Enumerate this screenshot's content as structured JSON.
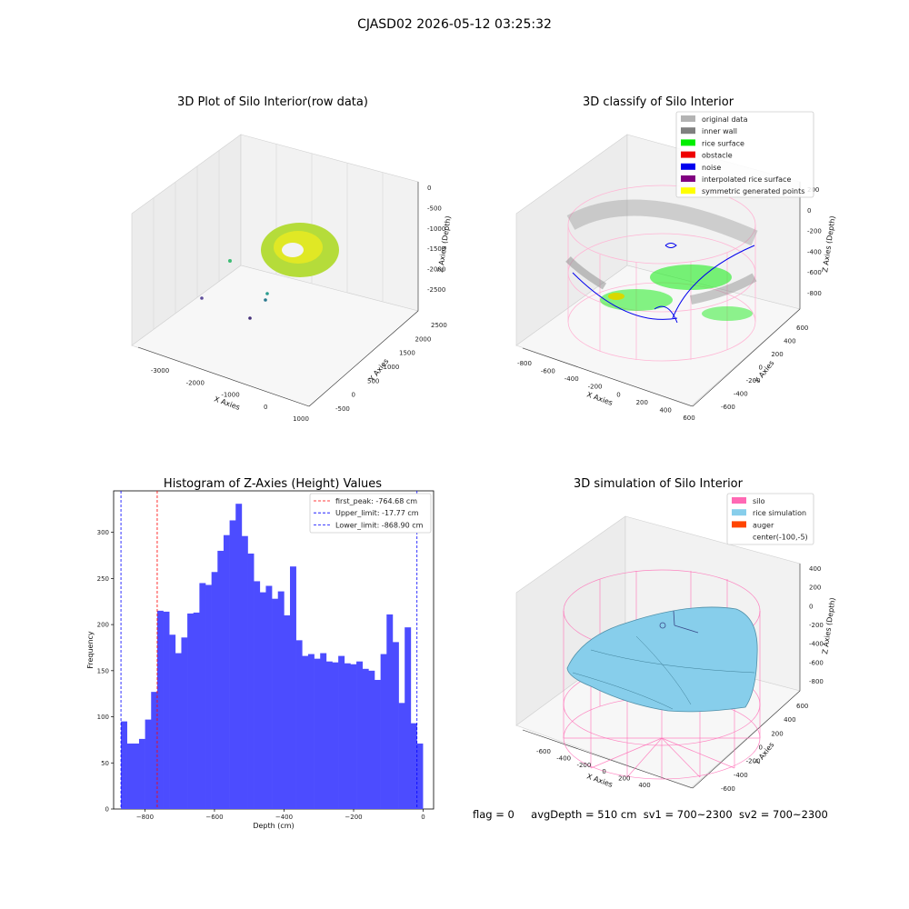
{
  "figure_title": "CJASD02 2026-05-12 03:25:32",
  "colors": {
    "hist_bar": "#4c4cff",
    "first_peak": "#ff0000",
    "limits": "#0000ff",
    "rice": "#88ccdd",
    "silo": "#ff69b4",
    "auger": "#ff4500",
    "noise": "#0000ff",
    "surface": "#00ff00",
    "wall": "#888888"
  },
  "panels": {
    "raw": {
      "title": "3D Plot of Silo Interior(row data)",
      "xlabel": "X Axies",
      "ylabel": "Y Axies",
      "zlabel": "Z Axies (Depth)",
      "xticks": [
        "-3000",
        "-2000",
        "-1000",
        "0",
        "1000"
      ],
      "yticks": [
        "-500",
        "0",
        "500",
        "1000",
        "1500",
        "2000",
        "2500"
      ],
      "zticks": [
        "0",
        "-500",
        "-1000",
        "-1500",
        "-2000",
        "-2500"
      ]
    },
    "classify": {
      "title": "3D classify of Silo Interior",
      "xlabel": "X Axies",
      "ylabel": "Y Axies",
      "zlabel": "Z Axies (Depth)",
      "xticks": [
        "-800",
        "-600",
        "-400",
        "-200",
        "0",
        "200",
        "400",
        "600"
      ],
      "yticks": [
        "-600",
        "-400",
        "-200",
        "0",
        "200",
        "400",
        "600"
      ],
      "zticks": [
        "200",
        "0",
        "-200",
        "-400",
        "-600",
        "-800"
      ],
      "legend": [
        {
          "label": "original data",
          "color": "#b3b3b3"
        },
        {
          "label": "inner wall",
          "color": "#808080"
        },
        {
          "label": "rice surface",
          "color": "#00ee00"
        },
        {
          "label": "obstacle",
          "color": "#ee0000"
        },
        {
          "label": "noise",
          "color": "#0000ee"
        },
        {
          "label": "interpolated rice surface",
          "color": "#800080"
        },
        {
          "label": "symmetric generated points",
          "color": "#ffff00"
        }
      ]
    },
    "simulation": {
      "title": "3D simulation of Silo Interior",
      "xlabel": "X Axies",
      "ylabel": "Y Axies",
      "zlabel": "Z Axies (Depth)",
      "xticks": [
        "-600",
        "-400",
        "-200",
        "0",
        "200",
        "400"
      ],
      "yticks": [
        "-600",
        "-400",
        "-200",
        "0",
        "200",
        "400",
        "600"
      ],
      "zticks": [
        "400",
        "200",
        "0",
        "-200",
        "-400",
        "-600",
        "-800"
      ],
      "legend": [
        {
          "label": "silo",
          "color": "#ff69b4"
        },
        {
          "label": "rice simulation",
          "color": "#87ceeb"
        },
        {
          "label": "auger",
          "color": "#ff4500"
        },
        {
          "label": "center(-100,-5)",
          "color": null
        }
      ]
    }
  },
  "chart_data": {
    "type": "bar",
    "title": "Histogram of Z-Axies (Height) Values",
    "xlabel": "Depth (cm)",
    "ylabel": "Frequency",
    "xlim": [
      -890,
      30
    ],
    "ylim": [
      0,
      345
    ],
    "xticks": [
      -800,
      -600,
      -400,
      -200,
      0
    ],
    "yticks": [
      0,
      50,
      100,
      150,
      200,
      250,
      300
    ],
    "bin_range": [
      -869,
      -1
    ],
    "values": [
      95,
      71,
      71,
      76,
      97,
      127,
      215,
      214,
      189,
      169,
      186,
      212,
      213,
      245,
      243,
      257,
      280,
      297,
      313,
      331,
      296,
      277,
      247,
      235,
      242,
      228,
      236,
      210,
      263,
      183,
      166,
      168,
      163,
      169,
      160,
      159,
      166,
      158,
      157,
      160,
      152,
      150,
      140,
      168,
      211,
      181,
      115,
      197,
      93,
      71
    ],
    "lines": [
      {
        "label": "first_peak: -764.68 cm",
        "x": -764.68,
        "color": "#ff0000"
      },
      {
        "label": "Upper_limit: -17.77 cm",
        "x": -17.77,
        "color": "#0000ff"
      },
      {
        "label": "Lower_limit: -868.90 cm",
        "x": -868.9,
        "color": "#0000ff"
      }
    ],
    "legend_position": "top-right"
  },
  "footer": {
    "flag": "flag = 0",
    "avg": "avgDepth = 510 cm",
    "sv1": "sv1 = 700~2300",
    "sv2": "sv2 = 700~2300"
  }
}
